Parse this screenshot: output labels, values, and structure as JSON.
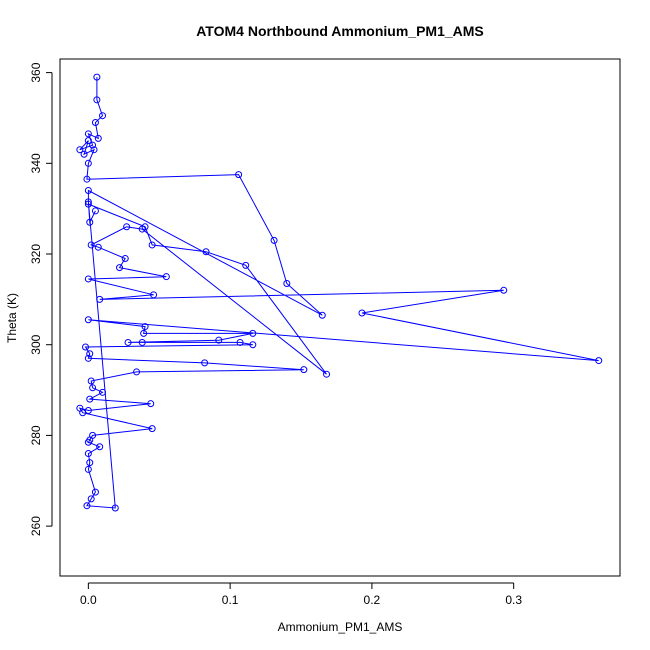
{
  "chart_data": {
    "type": "scatter",
    "title": "ATOM4 Northbound Ammonium_PM1_AMS",
    "xlabel": "Ammonium_PM1_AMS",
    "ylabel": "Theta (K)",
    "xlim": [
      -0.02,
      0.375
    ],
    "ylim": [
      249,
      363
    ],
    "xticks": [
      0.0,
      0.1,
      0.2,
      0.3
    ],
    "xtick_labels": [
      "0.0",
      "0.1",
      "0.2",
      "0.3"
    ],
    "yticks": [
      260,
      280,
      300,
      320,
      340,
      360
    ],
    "ytick_labels": [
      "260",
      "280",
      "300",
      "320",
      "340",
      "360"
    ],
    "grid": false,
    "legend": "none",
    "line_color": "#0000ff",
    "marker": "open-circle",
    "series": [
      {
        "points": [
          [
            0.006,
            359.0
          ],
          [
            0.006,
            354.0
          ],
          [
            0.01,
            350.5
          ],
          [
            0.005,
            349.0
          ],
          [
            0.007,
            345.5
          ],
          [
            0.0,
            346.5
          ],
          [
            0.003,
            344.0
          ],
          [
            -0.006,
            343.0
          ],
          [
            0.0,
            345.0
          ],
          [
            -0.003,
            342.0
          ],
          [
            0.004,
            343.0
          ],
          [
            0.0,
            340.0
          ],
          [
            -0.001,
            336.5
          ],
          [
            0.106,
            337.5
          ],
          [
            0.131,
            323.0
          ],
          [
            0.14,
            313.5
          ],
          [
            0.165,
            306.5
          ],
          [
            0.0,
            334.0
          ],
          [
            0.0,
            331.0
          ],
          [
            0.04,
            326.0
          ],
          [
            0.045,
            322.0
          ],
          [
            0.083,
            320.5
          ],
          [
            0.111,
            317.5
          ],
          [
            0.168,
            293.5
          ],
          [
            0.038,
            325.5
          ],
          [
            0.027,
            326.0
          ],
          [
            0.002,
            322.0
          ],
          [
            0.007,
            321.5
          ],
          [
            0.026,
            319.0
          ],
          [
            0.022,
            317.0
          ],
          [
            0.055,
            315.0
          ],
          [
            0.0,
            314.5
          ],
          [
            0.046,
            311.0
          ],
          [
            0.008,
            310.0
          ],
          [
            0.293,
            312.0
          ],
          [
            0.193,
            307.0
          ],
          [
            0.36,
            296.5
          ],
          [
            0.0,
            305.5
          ],
          [
            0.04,
            304.0
          ],
          [
            0.039,
            302.5
          ],
          [
            0.116,
            302.5
          ],
          [
            0.092,
            301.0
          ],
          [
            0.028,
            300.5
          ],
          [
            0.038,
            300.5
          ],
          [
            0.107,
            300.5
          ],
          [
            0.116,
            300.0
          ],
          [
            -0.002,
            299.5
          ],
          [
            0.001,
            298.0
          ],
          [
            0.0,
            297.0
          ],
          [
            0.082,
            296.0
          ],
          [
            0.152,
            294.5
          ],
          [
            0.034,
            294.0
          ],
          [
            0.002,
            292.0
          ],
          [
            0.003,
            290.5
          ],
          [
            0.01,
            289.5
          ],
          [
            0.001,
            288.0
          ],
          [
            0.044,
            287.0
          ],
          [
            0.0,
            285.5
          ],
          [
            -0.006,
            286.0
          ],
          [
            -0.004,
            285.0
          ],
          [
            0.045,
            281.5
          ],
          [
            0.003,
            280.0
          ],
          [
            0.001,
            279.0
          ],
          [
            0.0,
            278.5
          ],
          [
            0.008,
            277.5
          ],
          [
            0.0,
            276.0
          ],
          [
            0.001,
            274.0
          ],
          [
            0.0,
            272.5
          ],
          [
            0.005,
            267.5
          ],
          [
            0.002,
            266.0
          ],
          [
            -0.001,
            264.5
          ],
          [
            0.019,
            264.0
          ],
          [
            0.0,
            331.5
          ],
          [
            0.001,
            327.0
          ],
          [
            0.005,
            329.5
          ]
        ]
      }
    ]
  }
}
